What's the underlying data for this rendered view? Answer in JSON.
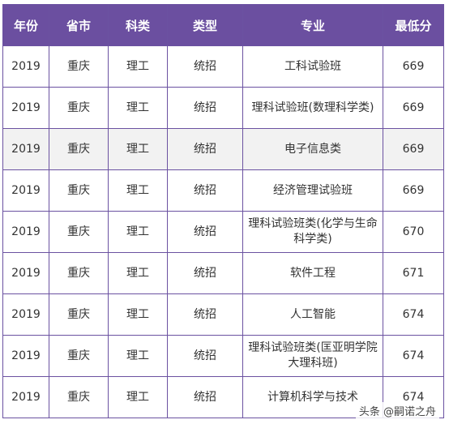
{
  "table": {
    "headers": [
      "年份",
      "省市",
      "科类",
      "类型",
      "专业",
      "最低分"
    ],
    "rows": [
      {
        "year": "2019",
        "province": "重庆",
        "subject": "理工",
        "type": "统招",
        "major": "工科试验班",
        "min_score": "669"
      },
      {
        "year": "2019",
        "province": "重庆",
        "subject": "理工",
        "type": "统招",
        "major": "理科试验班(数理科学类)",
        "min_score": "669"
      },
      {
        "year": "2019",
        "province": "重庆",
        "subject": "理工",
        "type": "统招",
        "major": "电子信息类",
        "min_score": "669"
      },
      {
        "year": "2019",
        "province": "重庆",
        "subject": "理工",
        "type": "统招",
        "major": "经济管理试验班",
        "min_score": "669"
      },
      {
        "year": "2019",
        "province": "重庆",
        "subject": "理工",
        "type": "统招",
        "major": "理科试验班类(化学与生命科学类)",
        "min_score": "670"
      },
      {
        "year": "2019",
        "province": "重庆",
        "subject": "理工",
        "type": "统招",
        "major": "软件工程",
        "min_score": "671"
      },
      {
        "year": "2019",
        "province": "重庆",
        "subject": "理工",
        "type": "统招",
        "major": "人工智能",
        "min_score": "674"
      },
      {
        "year": "2019",
        "province": "重庆",
        "subject": "理工",
        "type": "统招",
        "major": "理科试验班类(匡亚明学院大理科班)",
        "min_score": "674"
      },
      {
        "year": "2019",
        "province": "重庆",
        "subject": "理工",
        "type": "统招",
        "major": "计算机科学与技术",
        "min_score": "674"
      }
    ]
  },
  "watermark": "头条 @嗣诺之舟"
}
